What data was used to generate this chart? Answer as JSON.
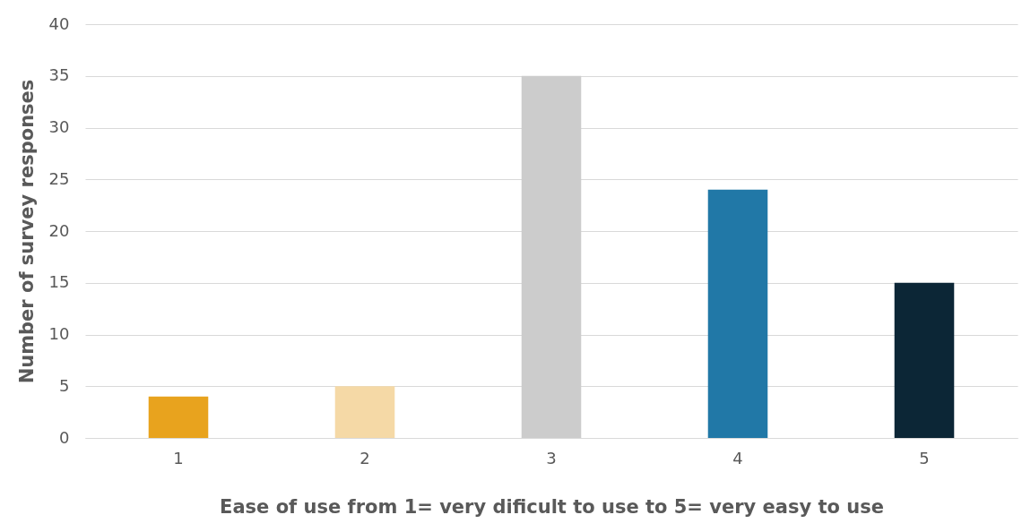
{
  "chart_data": {
    "type": "bar",
    "categories": [
      "1",
      "2",
      "3",
      "4",
      "5"
    ],
    "values": [
      4,
      5,
      35,
      24,
      15
    ],
    "colors": [
      "#e8a31e",
      "#f5d9a6",
      "#cccccc",
      "#2178a7",
      "#0c2636"
    ],
    "xlabel": "Ease of use from 1= very dificult to use to 5= very easy to use",
    "ylabel": "Number of survey responses",
    "ylim": [
      0,
      40
    ],
    "yticks": [
      0,
      5,
      10,
      15,
      20,
      25,
      30,
      35,
      40
    ],
    "grid": "y"
  }
}
